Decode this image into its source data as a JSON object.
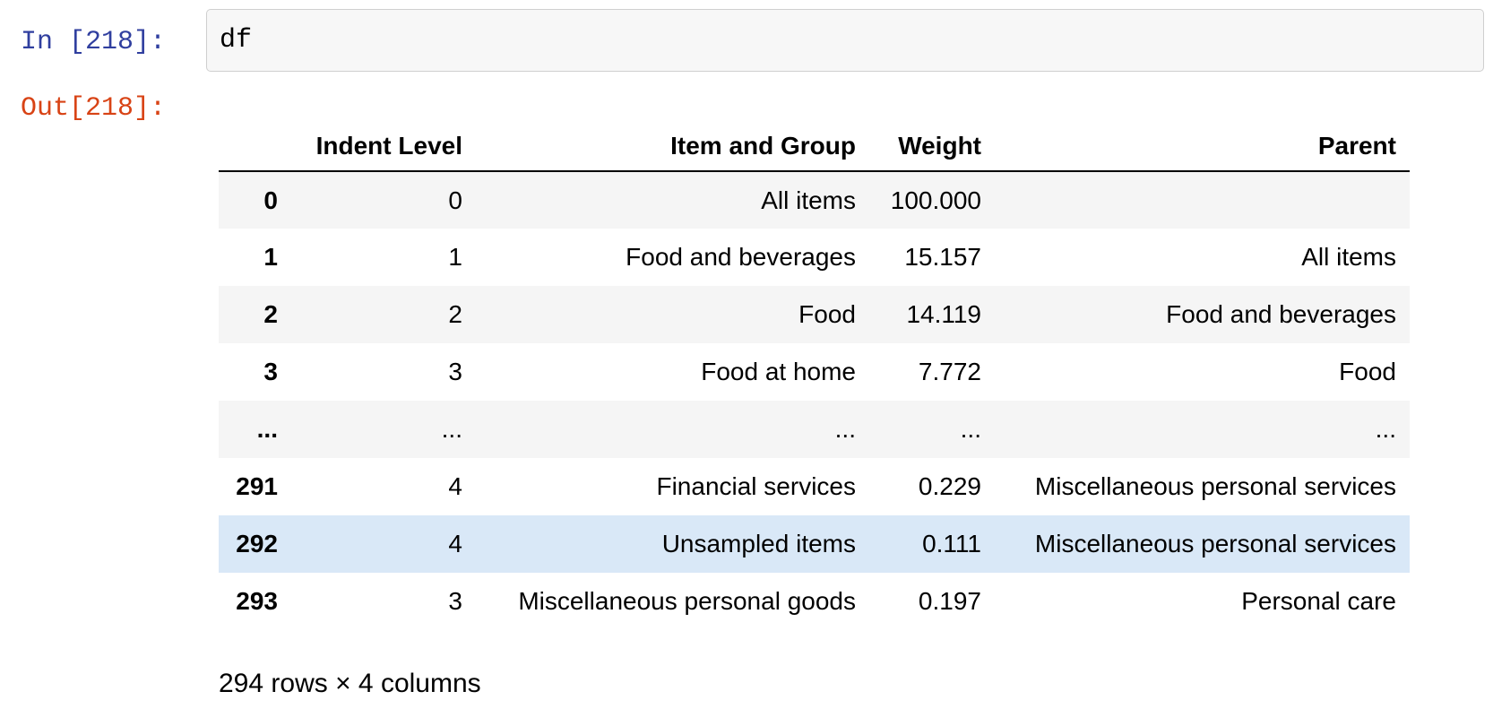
{
  "notebook": {
    "input_prompt": "In [218]:",
    "output_prompt": "Out[218]:",
    "code": "df",
    "shape_caption": "294 rows × 4 columns"
  },
  "table": {
    "columns": [
      "Indent Level",
      "Item and Group",
      "Weight",
      "Parent"
    ],
    "rows": [
      {
        "index": "0",
        "cells": [
          "0",
          "All items",
          "100.000",
          ""
        ]
      },
      {
        "index": "1",
        "cells": [
          "1",
          "Food and beverages",
          "15.157",
          "All items"
        ]
      },
      {
        "index": "2",
        "cells": [
          "2",
          "Food",
          "14.119",
          "Food and beverages"
        ]
      },
      {
        "index": "3",
        "cells": [
          "3",
          "Food at home",
          "7.772",
          "Food"
        ]
      },
      {
        "index": "...",
        "cells": [
          "...",
          "...",
          "...",
          "..."
        ]
      },
      {
        "index": "291",
        "cells": [
          "4",
          "Financial services",
          "0.229",
          "Miscellaneous personal services"
        ]
      },
      {
        "index": "292",
        "cells": [
          "4",
          "Unsampled items",
          "0.111",
          "Miscellaneous personal services"
        ],
        "highlighted": true
      },
      {
        "index": "293",
        "cells": [
          "3",
          "Miscellaneous personal goods",
          "0.197",
          "Personal care"
        ]
      }
    ]
  },
  "colors": {
    "input_prompt": "#303F9F",
    "output_prompt": "#D84315",
    "input_cell_bg": "#f7f7f7",
    "input_cell_border": "#cfcfcf",
    "row_stripe": "#f5f5f5",
    "row_highlight": "#d9e8f7",
    "header_rule": "#000000"
  }
}
